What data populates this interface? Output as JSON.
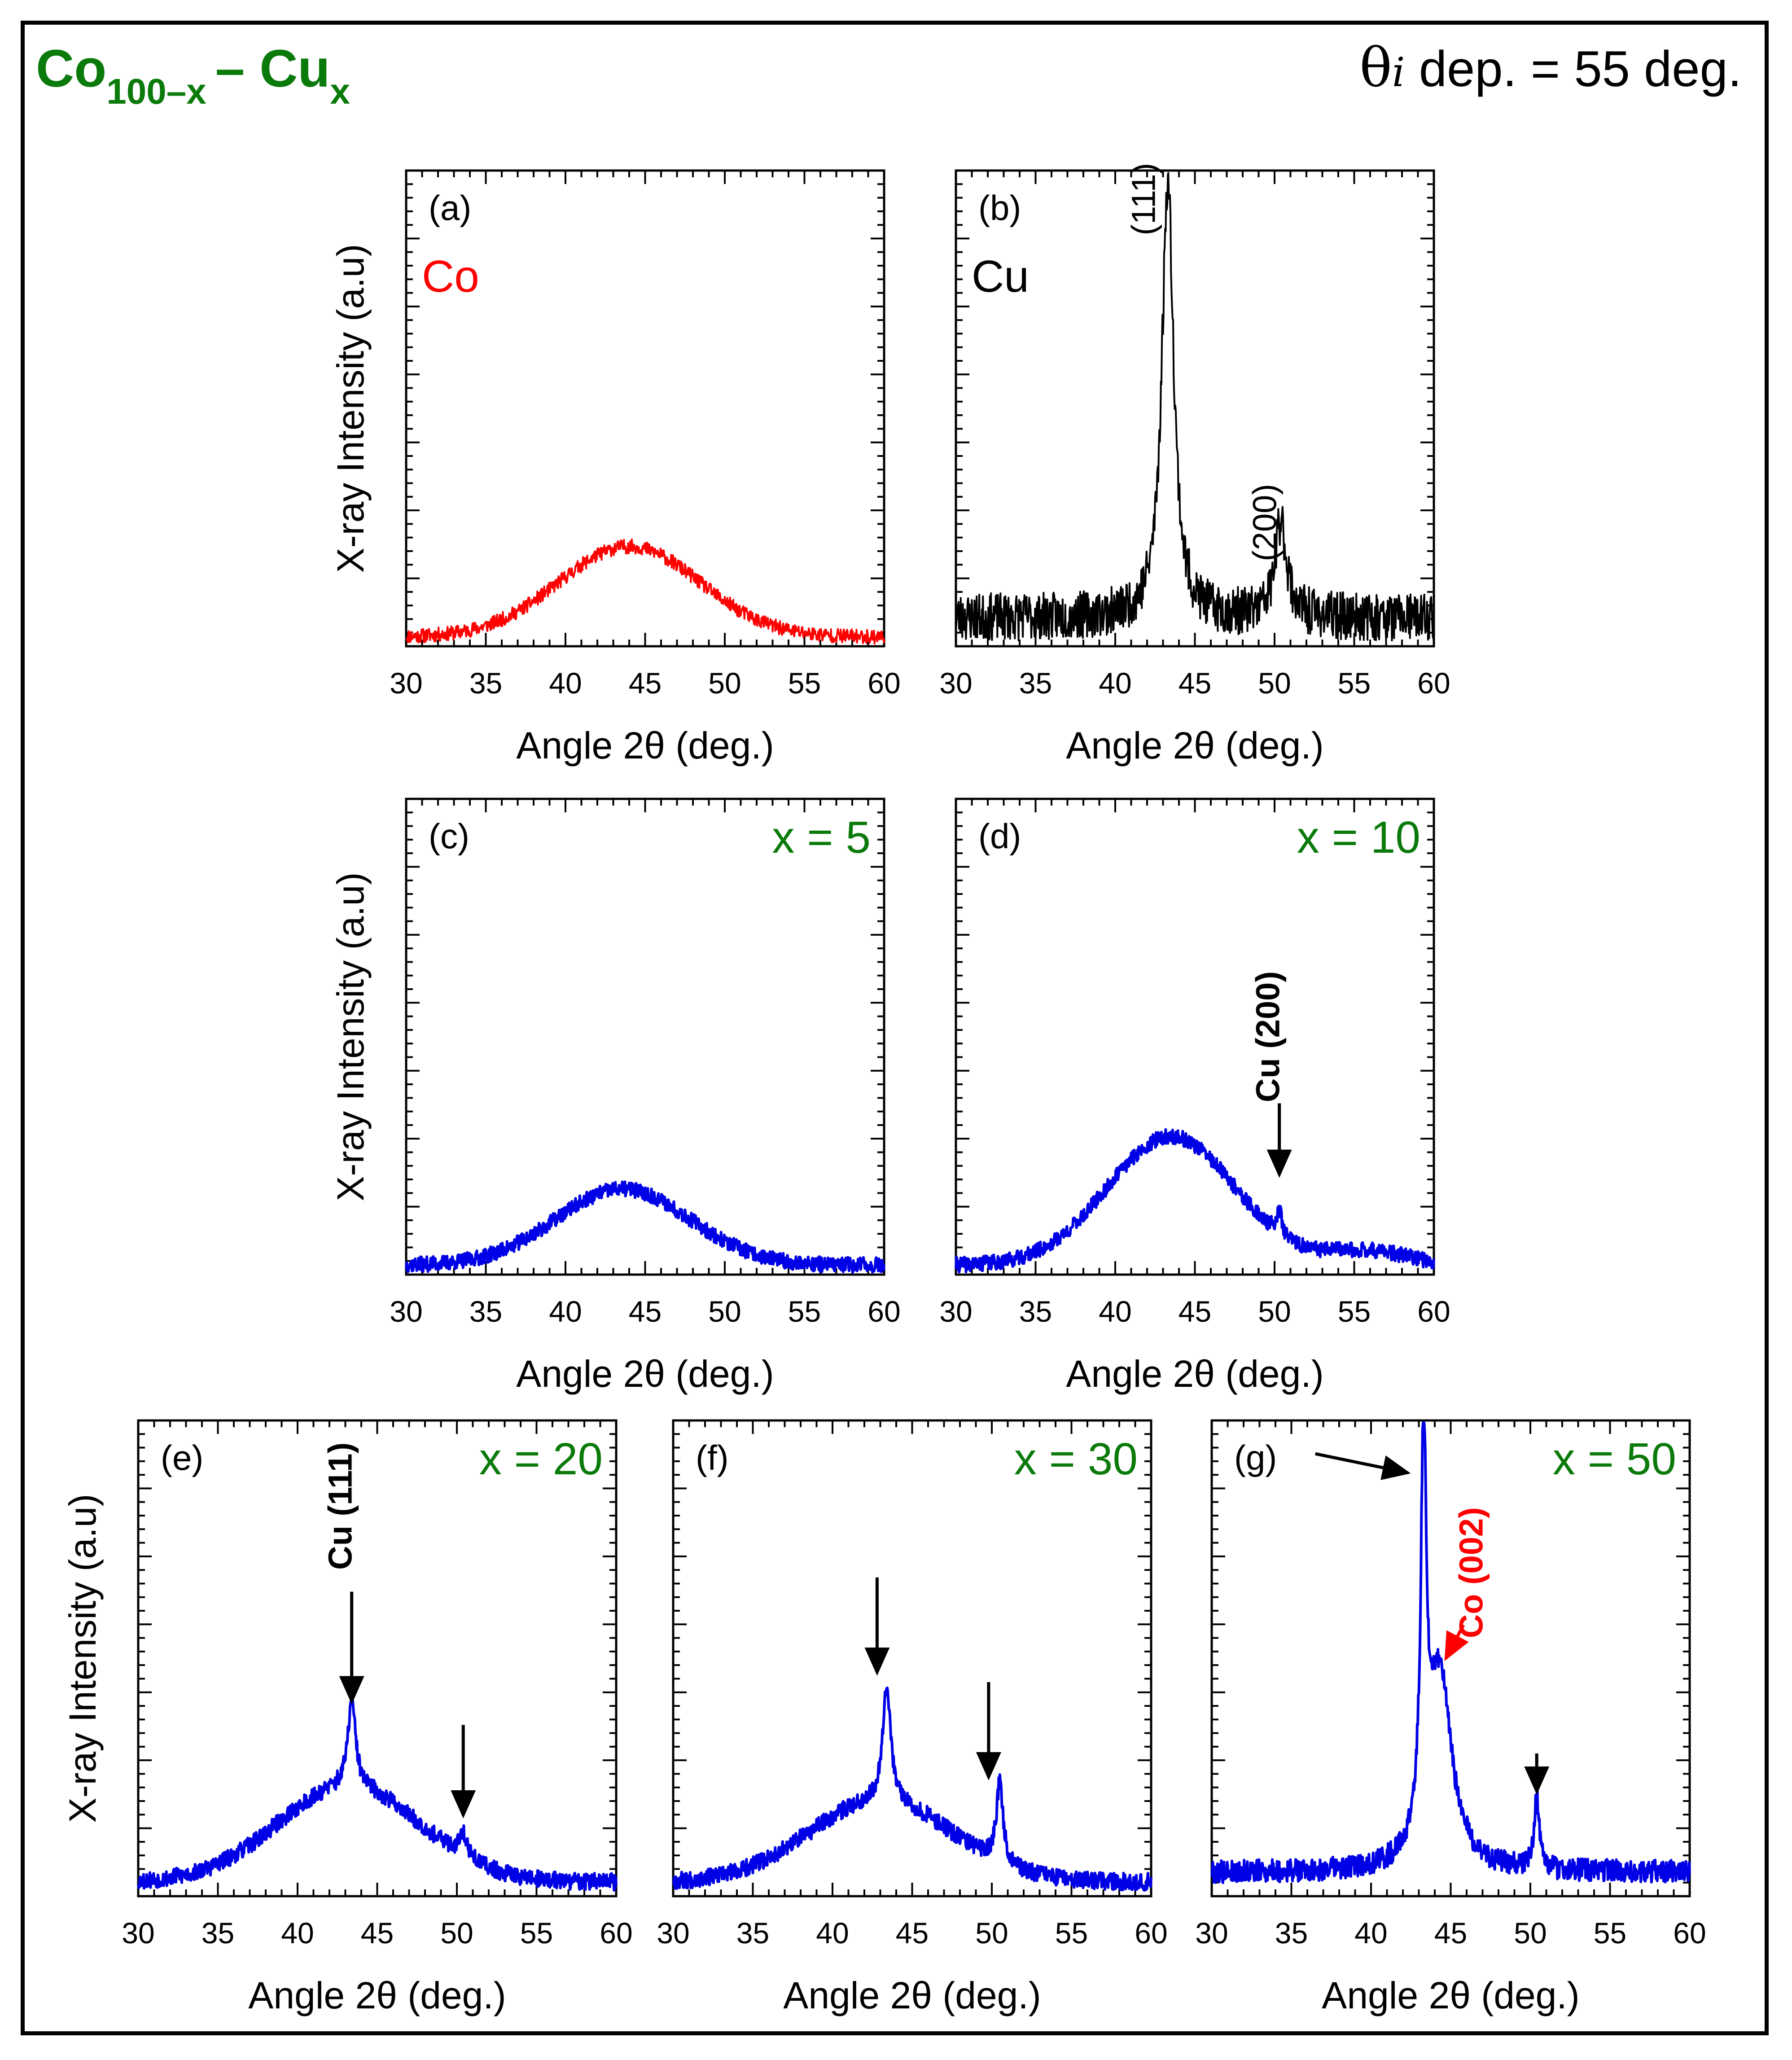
{
  "header": {
    "formula": {
      "base": "Co",
      "base_sub": "100–x",
      "dash": "–",
      "alloy": "Cu",
      "alloy_sub": "x"
    },
    "deposition": {
      "theta": "θ",
      "theta_sub": "i",
      "text": "dep. = 55 deg."
    }
  },
  "colors": {
    "green": "#0a7a0a",
    "red": "#ff0000",
    "blue": "#0000e6",
    "black": "#000000"
  },
  "chart_data": [
    {
      "id": "a",
      "panel": "(a)",
      "type": "line",
      "xlabel": "Angle 2θ (deg.)",
      "ylabel": "X-ray Intensity (a.u)",
      "xlim": [
        30,
        60
      ],
      "ylim": [
        0,
        100
      ],
      "xticks": [
        30,
        35,
        40,
        45,
        50,
        55,
        60
      ],
      "label": {
        "text": "Co",
        "color": "red"
      },
      "series": [
        {
          "name": "Co",
          "color": "red",
          "baseline": 2,
          "noise": 1.5,
          "seed": 11,
          "peaks": [
            {
              "x": 44.0,
              "h": 19,
              "w": 4.4,
              "shape": "gauss"
            }
          ]
        }
      ],
      "annotations": []
    },
    {
      "id": "b",
      "panel": "(b)",
      "type": "line",
      "xlabel": "Angle 2θ (deg.)",
      "ylabel": "",
      "xlim": [
        30,
        60
      ],
      "ylim": [
        0,
        100
      ],
      "xticks": [
        30,
        35,
        40,
        45,
        50,
        55,
        60
      ],
      "label": {
        "text": "Cu",
        "color": "black"
      },
      "series": [
        {
          "name": "Cu",
          "color": "black",
          "baseline": 6,
          "noise": 5,
          "seed": 23,
          "peaks": [
            {
              "x": 43.3,
              "h": 92,
              "w": 0.45,
              "shape": "lorentz"
            },
            {
              "x": 50.4,
              "h": 20,
              "w": 0.45,
              "shape": "lorentz"
            }
          ]
        }
      ],
      "annotations": [
        {
          "text": "(111)",
          "x": 42.5,
          "y": 94,
          "bold": false,
          "color": "black",
          "rotate": true
        },
        {
          "text": "(200)",
          "x": 50.1,
          "y": 26,
          "bold": false,
          "color": "black",
          "rotate": true
        }
      ]
    },
    {
      "id": "c",
      "panel": "(c)",
      "type": "line",
      "xlabel": "Angle 2θ (deg.)",
      "ylabel": "X-ray Intensity (a.u)",
      "xlim": [
        30,
        60
      ],
      "ylim": [
        0,
        100
      ],
      "xticks": [
        30,
        35,
        40,
        45,
        50,
        55,
        60
      ],
      "label": {
        "text": "x = 5",
        "color": "green"
      },
      "series": [
        {
          "name": "x = 5",
          "color": "blue",
          "baseline": 2,
          "noise": 1.6,
          "seed": 37,
          "peaks": [
            {
              "x": 43.6,
              "h": 16,
              "w": 4.2,
              "shape": "gauss"
            }
          ]
        }
      ],
      "annotations": []
    },
    {
      "id": "d",
      "panel": "(d)",
      "type": "line",
      "xlabel": "Angle 2θ (deg.)",
      "ylabel": "",
      "xlim": [
        30,
        60
      ],
      "ylim": [
        0,
        100
      ],
      "xticks": [
        30,
        35,
        40,
        45,
        50,
        55,
        60
      ],
      "label": {
        "text": "x = 10",
        "color": "green"
      },
      "series": [
        {
          "name": "x = 10",
          "color": "blue",
          "baseline": 2,
          "noise": 1.6,
          "seed": 41,
          "peaks": [
            {
              "x": 43.5,
              "h": 27,
              "w": 4.0,
              "shape": "gauss"
            },
            {
              "x": 50.3,
              "h": 5,
              "w": 0.2,
              "shape": "lorentz"
            },
            {
              "x": 55.8,
              "h": 3,
              "w": 2.5,
              "shape": "gauss"
            }
          ]
        }
      ],
      "annotations": [
        {
          "text": "Cu (200)",
          "x": 50.3,
          "y": 50,
          "bold": true,
          "color": "black",
          "rotate": true
        }
      ],
      "arrows": [
        {
          "from": [
            50.3,
            36
          ],
          "to": [
            50.3,
            21
          ],
          "color": "black"
        }
      ]
    },
    {
      "id": "e",
      "panel": "(e)",
      "type": "line",
      "xlabel": "Angle 2θ (deg.)",
      "ylabel": "X-ray Intensity (a.u)",
      "xlim": [
        30,
        60
      ],
      "ylim": [
        0,
        100
      ],
      "xticks": [
        30,
        35,
        40,
        45,
        50,
        55,
        60
      ],
      "label": {
        "text": "x = 20",
        "color": "green"
      },
      "series": [
        {
          "name": "x = 20",
          "color": "blue",
          "baseline": 3,
          "noise": 1.8,
          "seed": 53,
          "peaks": [
            {
              "x": 43.2,
              "h": 20,
              "w": 4.5,
              "shape": "gauss"
            },
            {
              "x": 43.4,
              "h": 18,
              "w": 0.3,
              "shape": "lorentz"
            },
            {
              "x": 50.4,
              "h": 5,
              "w": 0.3,
              "shape": "lorentz"
            }
          ]
        }
      ],
      "annotations": [
        {
          "text": "Cu (111)",
          "x": 43.4,
          "y": 82,
          "bold": true,
          "color": "black",
          "rotate": true
        }
      ],
      "arrows": [
        {
          "from": [
            43.4,
            64
          ],
          "to": [
            43.4,
            41
          ],
          "color": "black"
        },
        {
          "from": [
            50.4,
            36
          ],
          "to": [
            50.4,
            17
          ],
          "color": "black"
        }
      ]
    },
    {
      "id": "f",
      "panel": "(f)",
      "type": "line",
      "xlabel": "Angle 2θ (deg.)",
      "ylabel": "",
      "xlim": [
        30,
        60
      ],
      "ylim": [
        0,
        100
      ],
      "xticks": [
        30,
        35,
        40,
        45,
        50,
        55,
        60
      ],
      "label": {
        "text": "x = 30",
        "color": "green"
      },
      "series": [
        {
          "name": "x = 30",
          "color": "blue",
          "baseline": 3,
          "noise": 1.8,
          "seed": 67,
          "peaks": [
            {
              "x": 43.0,
              "h": 17,
              "w": 4.5,
              "shape": "gauss"
            },
            {
              "x": 43.4,
              "h": 25,
              "w": 0.3,
              "shape": "lorentz"
            },
            {
              "x": 50.5,
              "h": 17,
              "w": 0.25,
              "shape": "lorentz"
            }
          ]
        }
      ],
      "annotations": [],
      "arrows": [
        {
          "from": [
            42.8,
            67
          ],
          "to": [
            42.8,
            47
          ],
          "color": "black"
        },
        {
          "from": [
            49.8,
            45
          ],
          "to": [
            49.8,
            25
          ],
          "color": "black"
        }
      ]
    },
    {
      "id": "g",
      "panel": "(g)",
      "type": "line",
      "xlabel": "Angle 2θ (deg.)",
      "ylabel": "",
      "xlim": [
        30,
        60
      ],
      "ylim": [
        0,
        100
      ],
      "xticks": [
        30,
        35,
        40,
        45,
        50,
        55,
        60
      ],
      "label": {
        "text": "x = 50",
        "color": "green"
      },
      "series": [
        {
          "name": "x = 50",
          "color": "blue",
          "baseline": 5,
          "noise": 2.4,
          "seed": 79,
          "peaks": [
            {
              "x": 43.3,
              "h": 83,
              "w": 0.2,
              "shape": "lorentz"
            },
            {
              "x": 44.3,
              "h": 42,
              "w": 0.9,
              "shape": "lorentz"
            },
            {
              "x": 50.4,
              "h": 15,
              "w": 0.2,
              "shape": "lorentz"
            }
          ]
        }
      ],
      "annotations": [
        {
          "text": "Co (002)",
          "x": 47.0,
          "y": 68,
          "bold": true,
          "color": "red",
          "rotate": true
        }
      ],
      "arrows": [
        {
          "from": [
            36.5,
            93
          ],
          "to": [
            42.3,
            89
          ],
          "color": "black"
        },
        {
          "from": [
            45.8,
            57
          ],
          "to": [
            44.7,
            50
          ],
          "color": "red"
        },
        {
          "from": [
            50.4,
            30
          ],
          "to": [
            50.4,
            22
          ],
          "color": "black"
        }
      ]
    }
  ]
}
